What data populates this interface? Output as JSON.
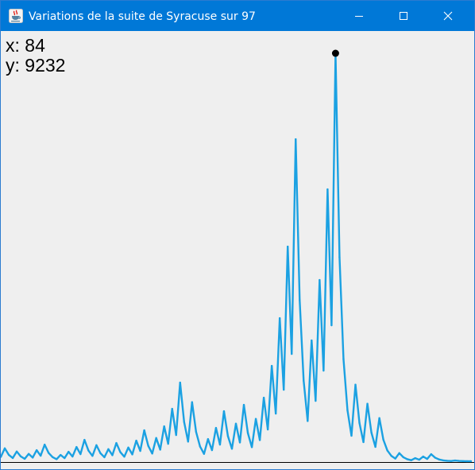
{
  "window": {
    "title": "Variations de la suite de Syracuse sur 97",
    "icons": {
      "app": "java-cup-icon",
      "minimize": "minimize-icon",
      "maximize": "maximize-icon",
      "close": "close-icon"
    }
  },
  "readout": {
    "x": "x: 84",
    "y": "y: 9232"
  },
  "colors": {
    "titlebar": "#0078d7",
    "line": "#1ba1e2",
    "marker": "#000000",
    "background": "#efefef"
  },
  "chart_data": {
    "type": "line",
    "start": 97,
    "x": [
      0,
      1,
      2,
      3,
      4,
      5,
      6,
      7,
      8,
      9,
      10,
      11,
      12,
      13,
      14,
      15,
      16,
      17,
      18,
      19,
      20,
      21,
      22,
      23,
      24,
      25,
      26,
      27,
      28,
      29,
      30,
      31,
      32,
      33,
      34,
      35,
      36,
      37,
      38,
      39,
      40,
      41,
      42,
      43,
      44,
      45,
      46,
      47,
      48,
      49,
      50,
      51,
      52,
      53,
      54,
      55,
      56,
      57,
      58,
      59,
      60,
      61,
      62,
      63,
      64,
      65,
      66,
      67,
      68,
      69,
      70,
      71,
      72,
      73,
      74,
      75,
      76,
      77,
      78,
      79,
      80,
      81,
      82,
      83,
      84,
      85,
      86,
      87,
      88,
      89,
      90,
      91,
      92,
      93,
      94,
      95,
      96,
      97,
      98,
      99,
      100,
      101,
      102,
      103,
      104,
      105,
      106,
      107,
      108,
      109,
      110,
      111,
      112,
      113,
      114,
      115,
      116,
      117,
      118
    ],
    "y": [
      97,
      292,
      146,
      73,
      220,
      110,
      55,
      166,
      83,
      250,
      125,
      376,
      188,
      94,
      47,
      142,
      71,
      214,
      107,
      322,
      161,
      484,
      242,
      121,
      364,
      182,
      91,
      274,
      137,
      412,
      206,
      103,
      310,
      155,
      466,
      233,
      700,
      350,
      175,
      526,
      263,
      790,
      395,
      1186,
      593,
      1780,
      890,
      445,
      1336,
      668,
      334,
      167,
      502,
      251,
      754,
      377,
      1132,
      566,
      283,
      850,
      425,
      1276,
      638,
      319,
      958,
      479,
      1438,
      719,
      2158,
      1079,
      3238,
      1619,
      4858,
      2429,
      7288,
      3644,
      1822,
      911,
      2734,
      1367,
      4102,
      2051,
      6154,
      3077,
      9232,
      4616,
      2308,
      1154,
      577,
      1732,
      866,
      433,
      1300,
      650,
      325,
      976,
      488,
      244,
      122,
      61,
      184,
      92,
      46,
      23,
      70,
      35,
      106,
      53,
      160,
      80,
      40,
      20,
      10,
      5,
      16,
      8,
      4,
      2,
      1
    ],
    "highlight": {
      "x": 84,
      "y": 9232
    },
    "ylim": [
      0,
      9232
    ],
    "xlim": [
      0,
      118
    ],
    "grid": false
  }
}
